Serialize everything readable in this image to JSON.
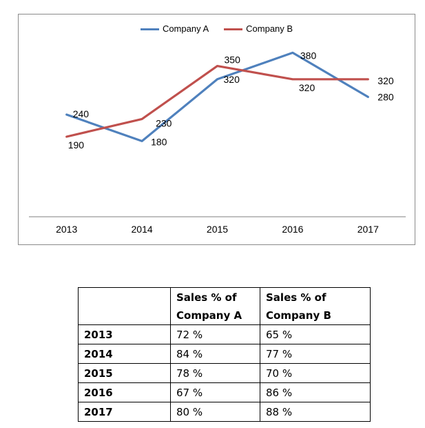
{
  "chart_data": {
    "type": "line",
    "categories": [
      "2013",
      "2014",
      "2015",
      "2016",
      "2017"
    ],
    "series": [
      {
        "name": "Company A",
        "color": "#4F81BD",
        "values": [
          240,
          180,
          320,
          380,
          280
        ]
      },
      {
        "name": "Company B",
        "color": "#C0504D",
        "values": [
          190,
          230,
          350,
          320,
          320
        ]
      }
    ],
    "title": "",
    "xlabel": "",
    "ylabel": "",
    "ylim": [
      0,
      400
    ],
    "grid": false,
    "legend_position": "top",
    "data_labels": true,
    "axis_color": "#7f7f7f",
    "frame_color": "#8a8a8a",
    "label_color": "#000000"
  },
  "table": {
    "corner_label": "",
    "headers": [
      {
        "line1": "Sales % of",
        "line2": "Company A"
      },
      {
        "line1": "Sales % of",
        "line2": "Company B"
      }
    ],
    "rows": [
      {
        "year": "2013",
        "company_a": "72 %",
        "company_b": "65 %"
      },
      {
        "year": "2014",
        "company_a": "84 %",
        "company_b": "77 %"
      },
      {
        "year": "2015",
        "company_a": "78 %",
        "company_b": "70 %"
      },
      {
        "year": "2016",
        "company_a": "67 %",
        "company_b": "86 %"
      },
      {
        "year": "2017",
        "company_a": "80 %",
        "company_b": "88 %"
      }
    ]
  }
}
